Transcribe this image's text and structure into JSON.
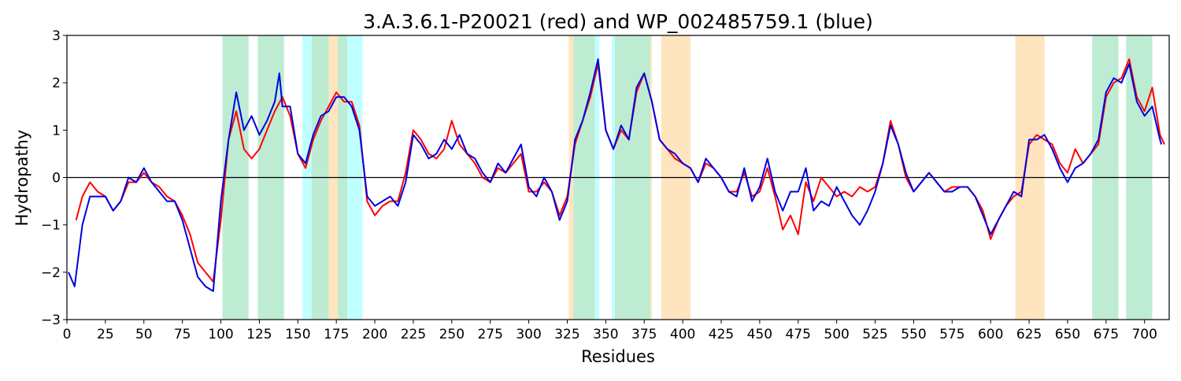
{
  "chart_data": {
    "type": "line",
    "title": "3.A.3.6.1-P20021 (red) and WP_002485759.1 (blue)",
    "x_label": "Residues",
    "y_label": "Hydropathy",
    "xlim": [
      0,
      716
    ],
    "ylim": [
      -3,
      3
    ],
    "xticks": [
      0,
      25,
      50,
      75,
      100,
      125,
      150,
      175,
      200,
      225,
      250,
      275,
      300,
      325,
      350,
      375,
      400,
      425,
      450,
      475,
      500,
      525,
      550,
      575,
      600,
      625,
      650,
      675,
      700
    ],
    "yticks": [
      {
        "value": -3,
        "label": "−3"
      },
      {
        "value": -2,
        "label": "−2"
      },
      {
        "value": -1,
        "label": "−1"
      },
      0,
      1,
      2,
      3
    ],
    "axhline": 0,
    "spans": [
      {
        "start": 101,
        "end": 118,
        "color": "#bdecd3"
      },
      {
        "start": 124,
        "end": 141,
        "color": "#bdecd3"
      },
      {
        "start": 153,
        "end": 192,
        "color": "#c0ffff"
      },
      {
        "start": 159,
        "end": 170,
        "color": "#bdecd3"
      },
      {
        "start": 170,
        "end": 176,
        "color": "#ffe4c0"
      },
      {
        "start": 176,
        "end": 182,
        "color": "#bdecd3"
      },
      {
        "start": 326,
        "end": 329,
        "color": "#ffe4c0"
      },
      {
        "start": 329,
        "end": 343,
        "color": "#bdecd3"
      },
      {
        "start": 343,
        "end": 346,
        "color": "#c0ffff"
      },
      {
        "start": 354,
        "end": 356,
        "color": "#c0ffff"
      },
      {
        "start": 356,
        "end": 379,
        "color": "#bdecd3"
      },
      {
        "start": 379,
        "end": 380,
        "color": "#ffe4c0"
      },
      {
        "start": 386,
        "end": 405,
        "color": "#ffe4c0"
      },
      {
        "start": 616,
        "end": 635,
        "color": "#ffe4c0"
      },
      {
        "start": 666,
        "end": 683,
        "color": "#bdecd3"
      },
      {
        "start": 688,
        "end": 705,
        "color": "#bdecd3"
      }
    ],
    "series": [
      {
        "color": "#ff0000",
        "x": [
          6,
          10,
          15,
          20,
          25,
          30,
          35,
          40,
          45,
          50,
          55,
          60,
          65,
          70,
          75,
          80,
          85,
          90,
          95,
          100,
          105,
          110,
          115,
          120,
          125,
          130,
          135,
          140,
          145,
          150,
          155,
          160,
          165,
          170,
          175,
          180,
          185,
          190,
          195,
          200,
          205,
          210,
          215,
          220,
          225,
          230,
          235,
          240,
          245,
          250,
          255,
          260,
          265,
          270,
          275,
          280,
          285,
          290,
          295,
          300,
          305,
          310,
          315,
          320,
          325,
          330,
          335,
          340,
          345,
          350,
          355,
          360,
          365,
          370,
          375,
          380,
          385,
          390,
          395,
          400,
          405,
          410,
          415,
          420,
          425,
          430,
          435,
          440,
          445,
          450,
          455,
          460,
          465,
          470,
          475,
          480,
          485,
          490,
          495,
          500,
          505,
          510,
          515,
          520,
          525,
          530,
          535,
          540,
          545,
          550,
          555,
          560,
          565,
          570,
          575,
          580,
          585,
          590,
          595,
          600,
          605,
          610,
          615,
          620,
          625,
          630,
          635,
          640,
          645,
          650,
          655,
          660,
          665,
          670,
          675,
          680,
          685,
          690,
          695,
          700,
          705,
          710,
          713
        ],
        "values": [
          -0.9,
          -0.4,
          -0.1,
          -0.3,
          -0.4,
          -0.7,
          -0.5,
          -0.1,
          -0.1,
          0.1,
          -0.1,
          -0.2,
          -0.4,
          -0.5,
          -0.8,
          -1.2,
          -1.8,
          -2.0,
          -2.2,
          -0.9,
          0.8,
          1.4,
          0.6,
          0.4,
          0.6,
          1.0,
          1.4,
          1.7,
          1.3,
          0.5,
          0.2,
          0.8,
          1.2,
          1.5,
          1.8,
          1.6,
          1.6,
          1.1,
          -0.5,
          -0.8,
          -0.6,
          -0.5,
          -0.5,
          0.1,
          1.0,
          0.8,
          0.5,
          0.4,
          0.6,
          1.2,
          0.7,
          0.5,
          0.3,
          0.0,
          -0.1,
          0.2,
          0.1,
          0.3,
          0.5,
          -0.3,
          -0.3,
          -0.1,
          -0.3,
          -0.8,
          -0.4,
          0.7,
          1.2,
          1.7,
          2.4,
          1.0,
          0.6,
          1.0,
          0.8,
          1.8,
          2.2,
          1.6,
          0.8,
          0.6,
          0.4,
          0.3,
          0.2,
          -0.1,
          0.3,
          0.2,
          0.0,
          -0.3,
          -0.3,
          0.1,
          -0.4,
          -0.3,
          0.2,
          -0.4,
          -1.1,
          -0.8,
          -1.2,
          -0.1,
          -0.5,
          0.0,
          -0.2,
          -0.4,
          -0.3,
          -0.4,
          -0.2,
          -0.3,
          -0.2,
          0.3,
          1.2,
          0.7,
          0.0,
          -0.3,
          -0.1,
          0.1,
          -0.1,
          -0.3,
          -0.2,
          -0.2,
          -0.2,
          -0.4,
          -0.7,
          -1.3,
          -0.9,
          -0.6,
          -0.4,
          -0.3,
          0.7,
          0.9,
          0.8,
          0.7,
          0.3,
          0.1,
          0.6,
          0.3,
          0.5,
          0.7,
          1.7,
          2.0,
          2.1,
          2.5,
          1.7,
          1.4,
          1.9,
          0.9,
          0.7
        ]
      },
      {
        "color": "#0000e0",
        "x": [
          1,
          5,
          10,
          15,
          20,
          25,
          30,
          35,
          40,
          45,
          50,
          55,
          60,
          65,
          70,
          75,
          80,
          85,
          90,
          95,
          100,
          105,
          110,
          115,
          120,
          125,
          130,
          135,
          138,
          140,
          145,
          150,
          155,
          160,
          165,
          170,
          175,
          180,
          185,
          190,
          195,
          200,
          205,
          210,
          215,
          220,
          225,
          230,
          235,
          240,
          245,
          250,
          255,
          260,
          265,
          270,
          275,
          280,
          285,
          290,
          295,
          300,
          305,
          310,
          315,
          320,
          325,
          330,
          335,
          340,
          345,
          350,
          355,
          360,
          365,
          370,
          375,
          380,
          385,
          390,
          395,
          400,
          405,
          410,
          415,
          420,
          425,
          430,
          435,
          440,
          445,
          450,
          455,
          460,
          465,
          470,
          475,
          480,
          485,
          490,
          495,
          500,
          505,
          510,
          515,
          520,
          525,
          530,
          535,
          540,
          545,
          550,
          555,
          560,
          565,
          570,
          575,
          580,
          585,
          590,
          595,
          600,
          605,
          610,
          615,
          620,
          625,
          630,
          635,
          640,
          645,
          650,
          655,
          660,
          665,
          670,
          675,
          680,
          685,
          690,
          695,
          700,
          705,
          710,
          711
        ],
        "values": [
          -2.0,
          -2.3,
          -1.0,
          -0.4,
          -0.4,
          -0.4,
          -0.7,
          -0.5,
          0.0,
          -0.1,
          0.2,
          -0.1,
          -0.3,
          -0.5,
          -0.5,
          -0.9,
          -1.5,
          -2.1,
          -2.3,
          -2.4,
          -0.5,
          0.8,
          1.8,
          1.0,
          1.3,
          0.9,
          1.2,
          1.6,
          2.2,
          1.5,
          1.5,
          0.5,
          0.3,
          0.9,
          1.3,
          1.4,
          1.7,
          1.7,
          1.5,
          1.0,
          -0.4,
          -0.6,
          -0.5,
          -0.4,
          -0.6,
          -0.1,
          0.9,
          0.7,
          0.4,
          0.5,
          0.8,
          0.6,
          0.9,
          0.5,
          0.4,
          0.1,
          -0.1,
          0.3,
          0.1,
          0.4,
          0.7,
          -0.2,
          -0.4,
          0.0,
          -0.3,
          -0.9,
          -0.5,
          0.8,
          1.2,
          1.8,
          2.5,
          1.0,
          0.6,
          1.1,
          0.8,
          1.9,
          2.2,
          1.6,
          0.8,
          0.6,
          0.5,
          0.3,
          0.2,
          -0.1,
          0.4,
          0.2,
          0.0,
          -0.3,
          -0.4,
          0.2,
          -0.5,
          -0.2,
          0.4,
          -0.3,
          -0.7,
          -0.3,
          -0.3,
          0.2,
          -0.7,
          -0.5,
          -0.6,
          -0.2,
          -0.5,
          -0.8,
          -1.0,
          -0.7,
          -0.3,
          0.3,
          1.1,
          0.7,
          0.1,
          -0.3,
          -0.1,
          0.1,
          -0.1,
          -0.3,
          -0.3,
          -0.2,
          -0.2,
          -0.4,
          -0.8,
          -1.2,
          -0.9,
          -0.6,
          -0.3,
          -0.4,
          0.8,
          0.8,
          0.9,
          0.6,
          0.2,
          -0.1,
          0.2,
          0.3,
          0.5,
          0.8,
          1.8,
          2.1,
          2.0,
          2.4,
          1.6,
          1.3,
          1.5,
          0.8,
          0.7
        ]
      }
    ]
  }
}
